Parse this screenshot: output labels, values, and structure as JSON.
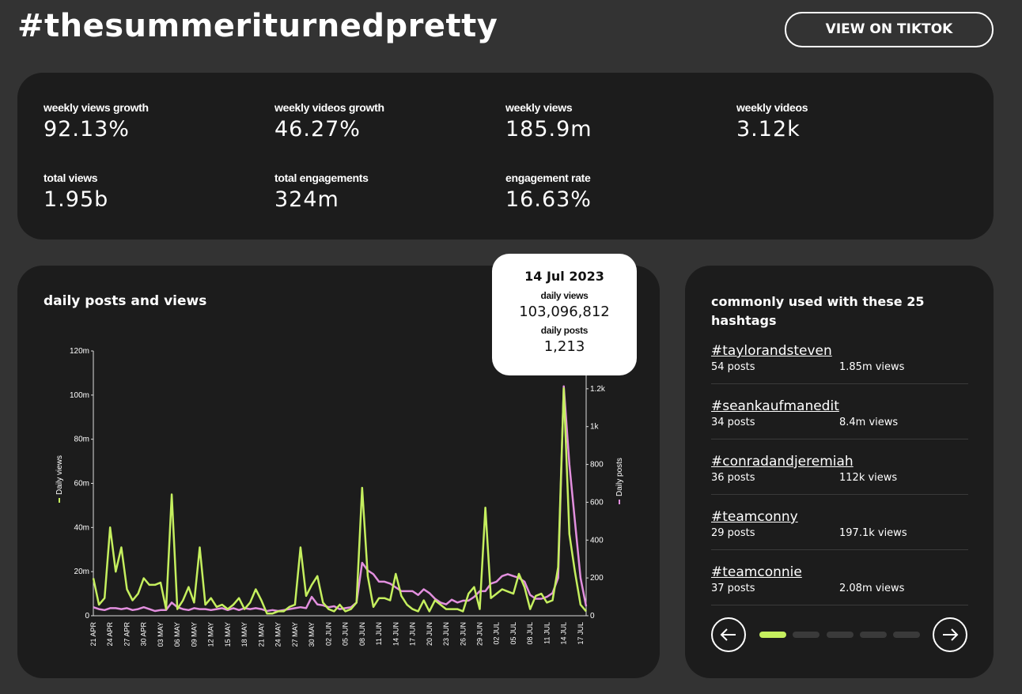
{
  "header": {
    "title": "#thesummeriturnedpretty",
    "button": "VIEW ON TIKTOK"
  },
  "stats": [
    {
      "label": "weekly views growth",
      "value": "92.13%"
    },
    {
      "label": "weekly videos growth",
      "value": "46.27%"
    },
    {
      "label": "weekly views",
      "value": "185.9m"
    },
    {
      "label": "weekly videos",
      "value": "3.12k"
    },
    {
      "label": "total views",
      "value": "1.95b"
    },
    {
      "label": "total engagements",
      "value": "324m"
    },
    {
      "label": "engagement rate",
      "value": "16.63%"
    }
  ],
  "chart_data": {
    "type": "line",
    "title": "daily posts and views",
    "x": [
      "21 APR",
      null,
      null,
      "24 APR",
      null,
      null,
      "27 APR",
      null,
      null,
      "30 APR",
      null,
      null,
      "03 MAY",
      null,
      null,
      "06 MAY",
      null,
      null,
      "09 MAY",
      null,
      null,
      "12 MAY",
      null,
      null,
      "15 MAY",
      null,
      null,
      "18 MAY",
      null,
      null,
      "21 MAY",
      null,
      null,
      "24 MAY",
      null,
      null,
      "27 MAY",
      null,
      null,
      "30 MAY",
      null,
      null,
      "02 JUN",
      null,
      null,
      "05 JUN",
      null,
      null,
      "08 JUN",
      null,
      null,
      "11 JUN",
      null,
      null,
      "14 JUN",
      null,
      null,
      "17 JUN",
      null,
      null,
      "20 JUN",
      null,
      null,
      "23 JUN",
      null,
      null,
      "26 JUN",
      null,
      null,
      "29 JUN",
      null,
      null,
      "02 JUL",
      null,
      null,
      "05 JUL",
      null,
      null,
      "08 JUL",
      null,
      null,
      "11 JUL",
      null,
      null,
      "14 JUL",
      null,
      null,
      "17 JUL",
      null
    ],
    "series": [
      {
        "name": "Daily views",
        "color": "#c5ef5e",
        "values": [
          17000000,
          5000000,
          8000000,
          40000000,
          20000000,
          31000000,
          12000000,
          7000000,
          10000000,
          17000000,
          14000000,
          14000000,
          15000000,
          3000000,
          55000000,
          3000000,
          7000000,
          13000000,
          6000000,
          31000000,
          5000000,
          8000000,
          4000000,
          5000000,
          3000000,
          5000000,
          8000000,
          3000000,
          6000000,
          12000000,
          7000000,
          1000000,
          1000000,
          2000000,
          2000000,
          4000000,
          5000000,
          31000000,
          9000000,
          14000000,
          18000000,
          6000000,
          3000000,
          2000000,
          5000000,
          2000000,
          3000000,
          6000000,
          58000000,
          18000000,
          4000000,
          8000000,
          8000000,
          7000000,
          19000000,
          9000000,
          5000000,
          3000000,
          2000000,
          7000000,
          2000000,
          7000000,
          5000000,
          3000000,
          3000000,
          3000000,
          2000000,
          10000000,
          13000000,
          3000000,
          49000000,
          8000000,
          10000000,
          12000000,
          11000000,
          10000000,
          19000000,
          13000000,
          3000000,
          9000000,
          10000000,
          6000000,
          7000000,
          22000000,
          103096812,
          37000000,
          20000000,
          5000000,
          2000000
        ]
      },
      {
        "name": "Daily posts",
        "color": "#e28fde",
        "axis": "y2",
        "values": [
          45,
          35,
          30,
          40,
          40,
          35,
          40,
          30,
          35,
          45,
          35,
          25,
          30,
          30,
          70,
          45,
          35,
          30,
          40,
          35,
          35,
          30,
          35,
          40,
          30,
          40,
          30,
          40,
          35,
          40,
          35,
          25,
          30,
          25,
          30,
          35,
          40,
          45,
          40,
          100,
          60,
          55,
          45,
          50,
          35,
          40,
          45,
          70,
          280,
          240,
          220,
          180,
          180,
          170,
          150,
          130,
          130,
          130,
          110,
          140,
          120,
          90,
          70,
          60,
          85,
          70,
          80,
          80,
          100,
          130,
          130,
          170,
          180,
          210,
          220,
          210,
          200,
          180,
          110,
          90,
          90,
          100,
          120,
          200,
          1213,
          800,
          500,
          200,
          50
        ]
      }
    ],
    "ylim": [
      0,
      120000000
    ],
    "yticks": [
      0,
      {
        "value": 20000000,
        "label": "20m"
      },
      {
        "value": 40000000,
        "label": "40m"
      },
      {
        "value": 60000000,
        "label": "60m"
      },
      {
        "value": 80000000,
        "label": "80m"
      },
      {
        "value": 100000000,
        "label": "100m"
      },
      {
        "value": 120000000,
        "label": "120m"
      }
    ],
    "y2lim": [
      0,
      1400
    ],
    "y2ticks": [
      0,
      200,
      400,
      600,
      800,
      {
        "value": 1000,
        "label": "1k"
      },
      {
        "value": 1200,
        "label": "1.2k"
      }
    ],
    "tooltip": {
      "date": "14 Jul 2023",
      "views_label": "daily views",
      "views": "103,096,812",
      "posts_label": "daily posts",
      "posts": "1,213"
    }
  },
  "hashtags": {
    "title": "commonly used with these 25 hashtags",
    "items": [
      {
        "tag": "#taylorandsteven",
        "posts": "54 posts",
        "views": "1.85m views"
      },
      {
        "tag": "#seankaufmanedit",
        "posts": "34 posts",
        "views": "8.4m views"
      },
      {
        "tag": "#conradandjeremiah",
        "posts": "36 posts",
        "views": "112k views"
      },
      {
        "tag": "#teamconny",
        "posts": "29 posts",
        "views": "197.1k views"
      },
      {
        "tag": "#teamconnie",
        "posts": "37 posts",
        "views": "2.08m views"
      }
    ]
  }
}
